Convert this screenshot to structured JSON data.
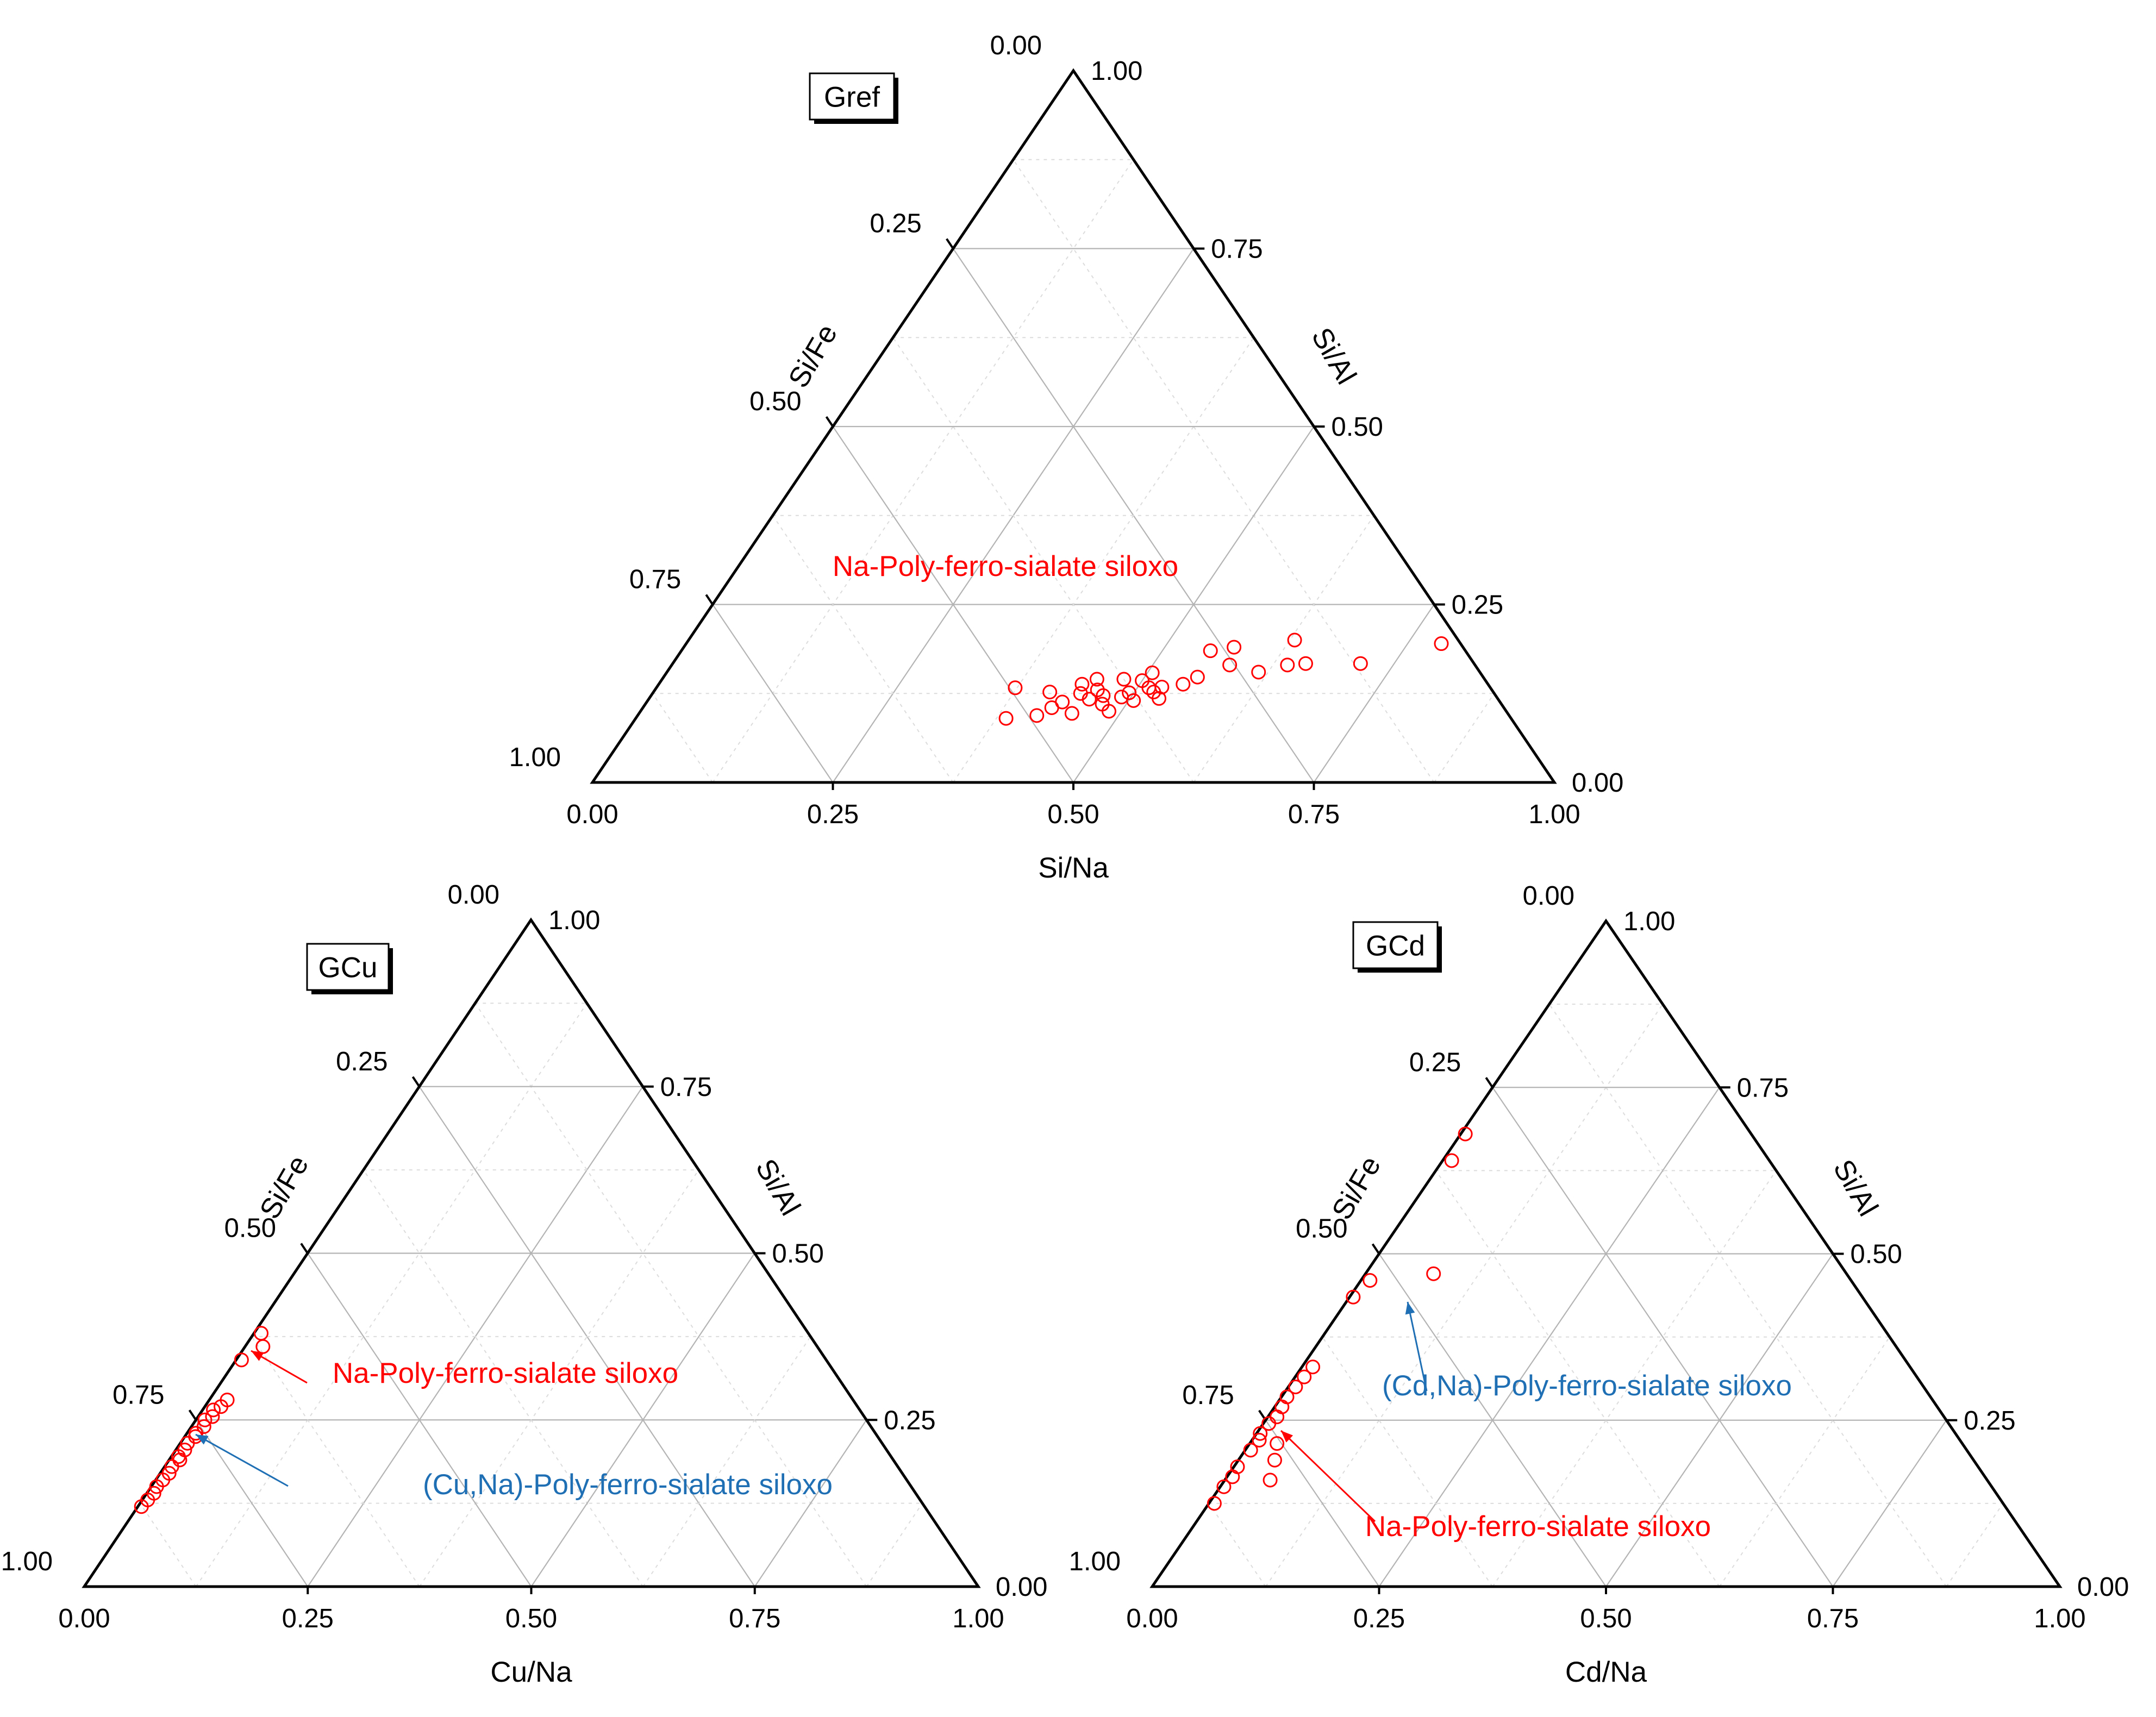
{
  "colors": {
    "red": "#ff0000",
    "blue": "#1f6fb4",
    "grid_major": "#b4b4b4",
    "grid_minor": "#dcdcdc",
    "axis": "#000000"
  },
  "chart_data": [
    {
      "type": "scatter",
      "subtype": "ternary",
      "panel_label": "Gref",
      "bottom_axis_title": "Si/Na",
      "left_axis_title": "Si/Fe",
      "right_axis_title": "Si/Al",
      "ticks": [
        "0.00",
        "0.25",
        "0.50",
        "0.75",
        "1.00"
      ],
      "grid": true,
      "components": [
        "Si/Na",
        "Si/Al",
        "Si/Fe"
      ],
      "annotations": [
        {
          "text": "Na-Poly-ferro-sialate siloxo",
          "color": "#ff0000"
        }
      ],
      "series": [
        {
          "marker": "open-circle",
          "color": "#ff0000",
          "points": [
            {
              "na": 0.385,
              "al": 0.09
            },
            {
              "na": 0.373,
              "al": 0.133
            },
            {
              "na": 0.415,
              "al": 0.094
            },
            {
              "na": 0.425,
              "al": 0.105
            },
            {
              "na": 0.412,
              "al": 0.127
            },
            {
              "na": 0.432,
              "al": 0.113
            },
            {
              "na": 0.44,
              "al": 0.138
            },
            {
              "na": 0.445,
              "al": 0.125
            },
            {
              "na": 0.452,
              "al": 0.145
            },
            {
              "na": 0.45,
              "al": 0.097
            },
            {
              "na": 0.458,
              "al": 0.117
            },
            {
              "na": 0.46,
              "al": 0.13
            },
            {
              "na": 0.47,
              "al": 0.122
            },
            {
              "na": 0.48,
              "al": 0.145
            },
            {
              "na": 0.49,
              "al": 0.12
            },
            {
              "na": 0.495,
              "al": 0.126
            },
            {
              "na": 0.5,
              "al": 0.143
            },
            {
              "na": 0.505,
              "al": 0.154
            },
            {
              "na": 0.512,
              "al": 0.133
            },
            {
              "na": 0.52,
              "al": 0.127
            },
            {
              "na": 0.53,
              "al": 0.118
            },
            {
              "na": 0.525,
              "al": 0.134
            },
            {
              "na": 0.545,
              "al": 0.138
            },
            {
              "na": 0.555,
              "al": 0.148
            },
            {
              "na": 0.55,
              "al": 0.185
            },
            {
              "na": 0.572,
              "al": 0.19
            },
            {
              "na": 0.58,
              "al": 0.165
            },
            {
              "na": 0.615,
              "al": 0.155
            },
            {
              "na": 0.63,
              "al": 0.2
            },
            {
              "na": 0.64,
              "al": 0.165
            },
            {
              "na": 0.658,
              "al": 0.167
            },
            {
              "na": 0.715,
              "al": 0.167
            },
            {
              "na": 0.785,
              "al": 0.195
            },
            {
              "na": 0.475,
              "al": 0.11
            },
            {
              "na": 0.505,
              "al": 0.115
            },
            {
              "na": 0.487,
              "al": 0.1
            }
          ]
        }
      ]
    },
    {
      "type": "scatter",
      "subtype": "ternary",
      "panel_label": "GCu",
      "bottom_axis_title": "Cu/Na",
      "left_axis_title": "Si/Fe",
      "right_axis_title": "Si/Al",
      "ticks": [
        "0.00",
        "0.25",
        "0.50",
        "0.75",
        "1.00"
      ],
      "grid": true,
      "components": [
        "Cu/Na",
        "Si/Al",
        "Si/Fe"
      ],
      "annotations": [
        {
          "text": "Na-Poly-ferro-sialate siloxo",
          "color": "#ff0000"
        },
        {
          "text": "(Cu,Na)-Poly-ferro-sialate siloxo",
          "color": "#1f6fb4"
        }
      ],
      "series": [
        {
          "marker": "open-circle",
          "color": "#ff0000",
          "points": [
            {
              "na": 0.008,
              "al": 0.38
            },
            {
              "na": 0.02,
              "al": 0.36
            },
            {
              "na": 0.006,
              "al": 0.34
            },
            {
              "na": 0.02,
              "al": 0.28
            },
            {
              "na": 0.018,
              "al": 0.27
            },
            {
              "na": 0.012,
              "al": 0.265
            },
            {
              "na": 0.016,
              "al": 0.255
            },
            {
              "na": 0.01,
              "al": 0.25
            },
            {
              "na": 0.014,
              "al": 0.24
            },
            {
              "na": 0.01,
              "al": 0.23
            },
            {
              "na": 0.012,
              "al": 0.225
            },
            {
              "na": 0.008,
              "al": 0.215
            },
            {
              "na": 0.01,
              "al": 0.205
            },
            {
              "na": 0.008,
              "al": 0.195
            },
            {
              "na": 0.012,
              "al": 0.19
            },
            {
              "na": 0.008,
              "al": 0.18
            },
            {
              "na": 0.01,
              "al": 0.17
            },
            {
              "na": 0.008,
              "al": 0.16
            },
            {
              "na": 0.006,
              "al": 0.15
            },
            {
              "na": 0.008,
              "al": 0.14
            },
            {
              "na": 0.006,
              "al": 0.13
            },
            {
              "na": 0.004,
              "al": 0.12
            }
          ]
        }
      ]
    },
    {
      "type": "scatter",
      "subtype": "ternary",
      "panel_label": "GCd",
      "bottom_axis_title": "Cd/Na",
      "left_axis_title": "Si/Fe",
      "right_axis_title": "Si/Al",
      "ticks": [
        "0.00",
        "0.25",
        "0.50",
        "0.75",
        "1.00"
      ],
      "grid": true,
      "components": [
        "Cd/Na",
        "Si/Al",
        "Si/Fe"
      ],
      "annotations": [
        {
          "text": "(Cd,Na)-Poly-ferro-sialate siloxo",
          "color": "#1f6fb4"
        },
        {
          "text": "Na-Poly-ferro-sialate siloxo",
          "color": "#ff0000"
        }
      ],
      "series": [
        {
          "marker": "open-circle",
          "color": "#ff0000",
          "points": [
            {
              "na": 0.005,
              "al": 0.68
            },
            {
              "na": 0.01,
              "al": 0.64
            },
            {
              "na": 0.075,
              "al": 0.47
            },
            {
              "na": 0.01,
              "al": 0.46
            },
            {
              "na": 0.004,
              "al": 0.435
            },
            {
              "na": 0.012,
              "al": 0.33
            },
            {
              "na": 0.01,
              "al": 0.315
            },
            {
              "na": 0.008,
              "al": 0.3
            },
            {
              "na": 0.006,
              "al": 0.285
            },
            {
              "na": 0.008,
              "al": 0.27
            },
            {
              "na": 0.01,
              "al": 0.255
            },
            {
              "na": 0.006,
              "al": 0.245
            },
            {
              "na": 0.004,
              "al": 0.23
            },
            {
              "na": 0.008,
              "al": 0.22
            },
            {
              "na": 0.03,
              "al": 0.215
            },
            {
              "na": 0.006,
              "al": 0.205
            },
            {
              "na": 0.04,
              "al": 0.19
            },
            {
              "na": 0.004,
              "al": 0.18
            },
            {
              "na": 0.006,
              "al": 0.165
            },
            {
              "na": 0.05,
              "al": 0.16
            },
            {
              "na": 0.004,
              "al": 0.15
            },
            {
              "na": 0.006,
              "al": 0.125
            }
          ]
        }
      ]
    }
  ]
}
